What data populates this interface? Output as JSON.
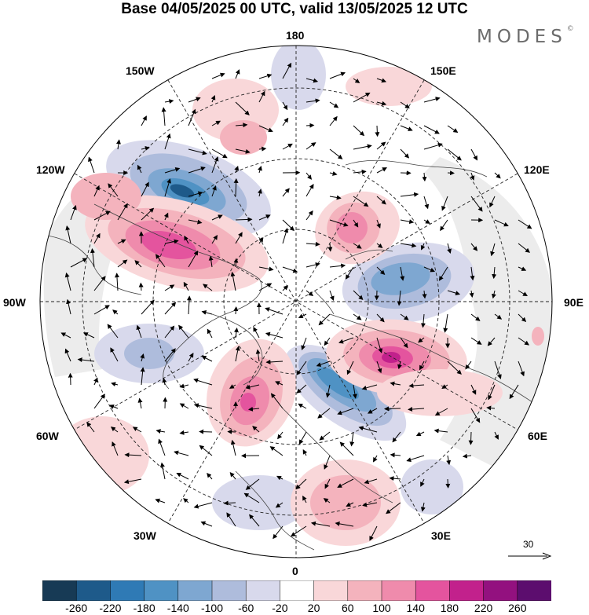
{
  "title": "Base 04/05/2025 00 UTC, valid 13/05/2025 12 UTC",
  "brand": "MODES",
  "brand_mark": "©",
  "longitude_labels": {
    "top": "180",
    "bottom": "0",
    "left": "90W",
    "right": "90E",
    "upper_left": "150W",
    "upper_right": "150E",
    "mid_left_upper": "120W",
    "mid_right_upper": "120E",
    "mid_left_lower": "60W",
    "mid_right_lower": "60E",
    "lower_left": "30W",
    "lower_right": "30E"
  },
  "reference_vector": "30",
  "colorbar": {
    "ticks": [
      "-260",
      "-220",
      "-180",
      "-140",
      "-100",
      "-60",
      "-20",
      "20",
      "60",
      "100",
      "140",
      "180",
      "220",
      "260"
    ],
    "colors": [
      "#173a55",
      "#1e5a8a",
      "#2f7ab5",
      "#4f92c4",
      "#7ea7d1",
      "#aebcdc",
      "#d8d9ec",
      "#ffffff",
      "#f9d7d9",
      "#f4b3bd",
      "#ef8bac",
      "#e4549e",
      "#c2218c",
      "#93117f",
      "#5c0d6e"
    ]
  }
}
